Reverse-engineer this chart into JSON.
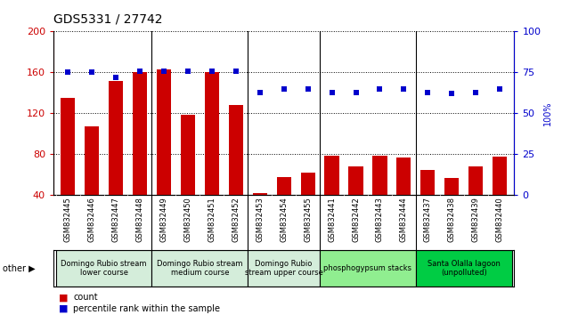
{
  "title": "GDS5331 / 27742",
  "samples": [
    "GSM832445",
    "GSM832446",
    "GSM832447",
    "GSM832448",
    "GSM832449",
    "GSM832450",
    "GSM832451",
    "GSM832452",
    "GSM832453",
    "GSM832454",
    "GSM832455",
    "GSM832441",
    "GSM832442",
    "GSM832443",
    "GSM832444",
    "GSM832437",
    "GSM832438",
    "GSM832439",
    "GSM832440"
  ],
  "counts": [
    135,
    107,
    152,
    160,
    163,
    119,
    160,
    128,
    42,
    58,
    62,
    79,
    68,
    79,
    77,
    65,
    57,
    68,
    78
  ],
  "percentiles": [
    75,
    75,
    72,
    76,
    76,
    76,
    76,
    76,
    63,
    65,
    65,
    63,
    63,
    65,
    65,
    63,
    62,
    63,
    65
  ],
  "ylim_left": [
    40,
    200
  ],
  "ylim_right": [
    0,
    100
  ],
  "yticks_left": [
    40,
    80,
    120,
    160,
    200
  ],
  "yticks_right": [
    0,
    25,
    50,
    75,
    100
  ],
  "groups": [
    {
      "label": "Domingo Rubio stream\nlower course",
      "start": 0,
      "end": 4,
      "color": "#d4edda"
    },
    {
      "label": "Domingo Rubio stream\nmedium course",
      "start": 4,
      "end": 8,
      "color": "#d4edda"
    },
    {
      "label": "Domingo Rubio\nstream upper course",
      "start": 8,
      "end": 11,
      "color": "#d4edda"
    },
    {
      "label": "phosphogypsum stacks",
      "start": 11,
      "end": 15,
      "color": "#90ee90"
    },
    {
      "label": "Santa Olalla lagoon\n(unpolluted)",
      "start": 15,
      "end": 19,
      "color": "#00cc44"
    }
  ],
  "bar_color": "#cc0000",
  "dot_color": "#0000cc",
  "plot_bg": "#ffffff",
  "xtick_bg": "#d0d0d0",
  "group_border_color": "#006600",
  "legend_square_size": 7
}
